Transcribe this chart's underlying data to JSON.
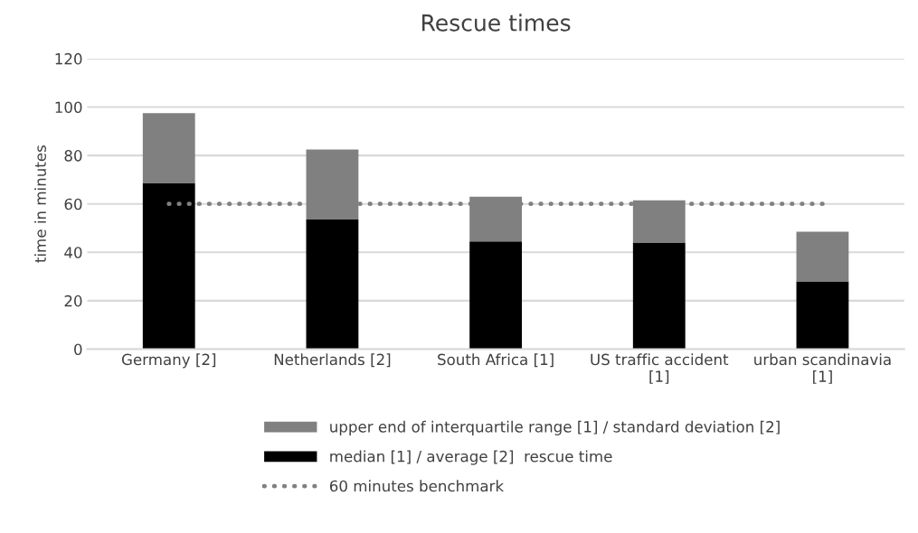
{
  "chart_data": {
    "type": "bar",
    "title": "Rescue times",
    "ylabel": "time in minutes",
    "categories": [
      "Germany [2]",
      "Netherlands [2]",
      "South Africa [1]",
      "US traffic accident\n[1]",
      "urban scandinavia\n[1]"
    ],
    "stacked": true,
    "series": [
      {
        "name": "median [1] / average [2]  rescue time",
        "color": "#000000",
        "values": [
          68.5,
          53.5,
          44.5,
          44,
          28
        ]
      },
      {
        "name": "upper end of interquartile range [1] / standard deviation [2]",
        "color": "#808080",
        "values": [
          29,
          29,
          18.5,
          17.5,
          20.5
        ]
      },
      {
        "name": "60 minutes benchmark",
        "type": "line",
        "color": "#808080",
        "line_style": "dotted",
        "values": [
          60,
          60,
          60,
          60,
          60
        ]
      }
    ],
    "ylim": [
      0,
      120
    ],
    "yticks": [
      0,
      20,
      40,
      60,
      80,
      100,
      120
    ],
    "grid": "y",
    "legend": "bottom"
  }
}
